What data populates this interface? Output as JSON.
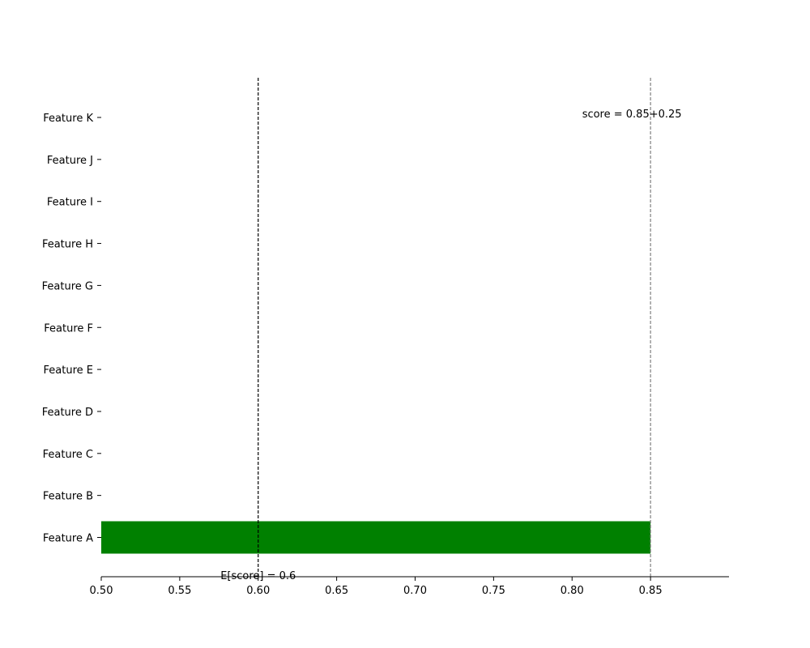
{
  "chart_data": {
    "type": "bar",
    "orientation": "horizontal",
    "title": "",
    "xlabel": "",
    "ylabel": "",
    "categories": [
      "Feature A",
      "Feature B",
      "Feature C",
      "Feature D",
      "Feature E",
      "Feature F",
      "Feature G",
      "Feature H",
      "Feature I",
      "Feature J",
      "Feature K"
    ],
    "values": [
      0.85,
      0.5,
      0.5,
      0.5,
      0.5,
      0.5,
      0.5,
      0.5,
      0.5,
      0.5,
      0.5
    ],
    "bar_color": "#008000",
    "xlim": [
      0.5,
      0.9
    ],
    "xticks": [
      "0.50",
      "0.55",
      "0.60",
      "0.65",
      "0.70",
      "0.75",
      "0.80",
      "0.85"
    ],
    "xtick_values": [
      0.5,
      0.55,
      0.6,
      0.65,
      0.7,
      0.75,
      0.8,
      0.85
    ],
    "grid": false,
    "legend": "none",
    "reference_lines": [
      {
        "x": 0.6,
        "color": "#000000",
        "style": "dashed",
        "label": "E[score] = 0.6"
      },
      {
        "x": 0.85,
        "color": "#808080",
        "style": "dashed",
        "label": "score = 0.85+0.25"
      }
    ]
  }
}
